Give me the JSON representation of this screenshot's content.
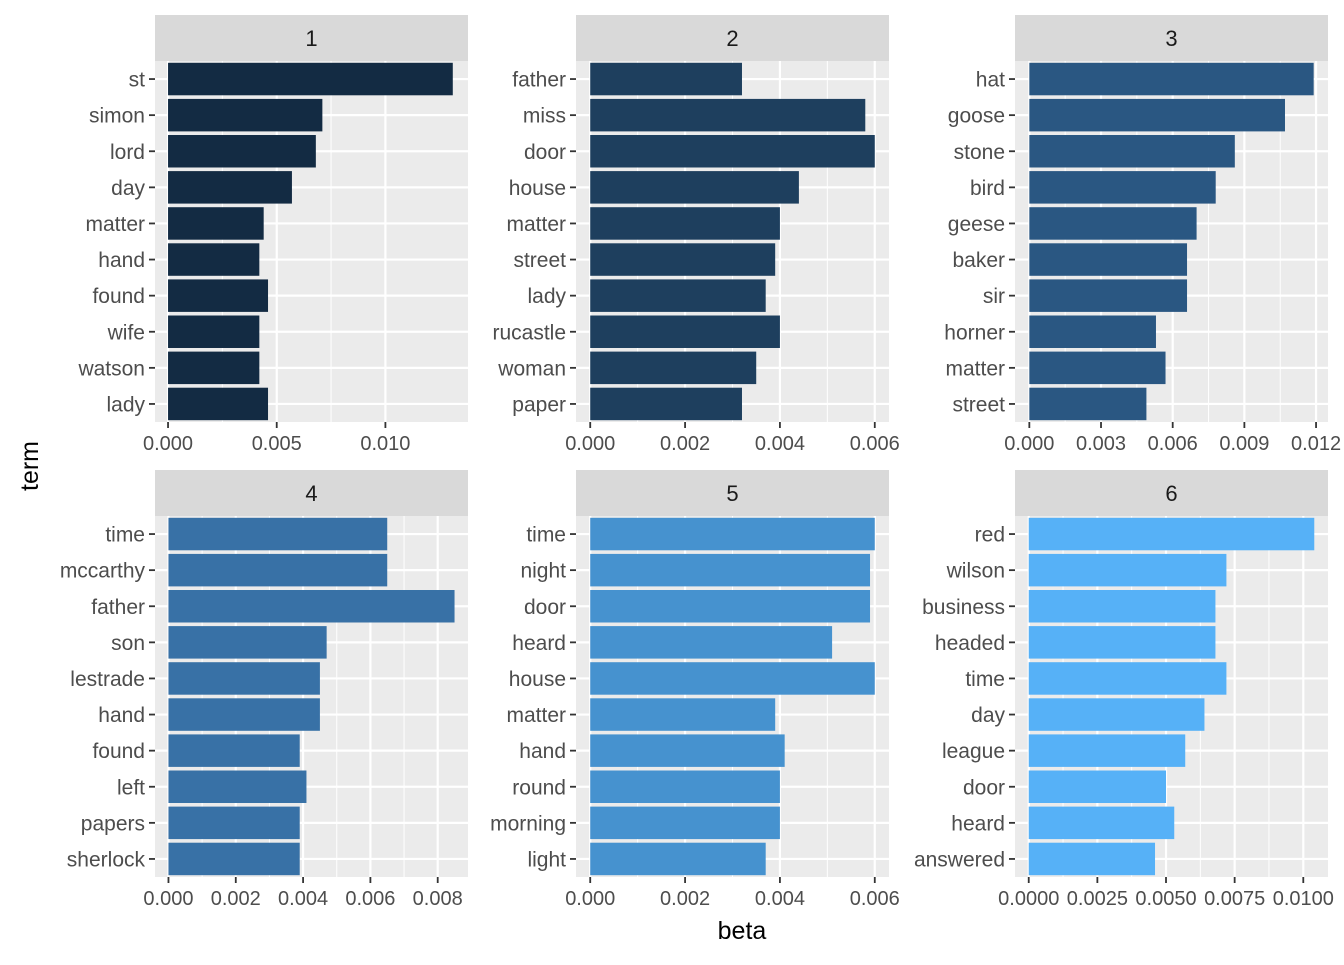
{
  "chart_data": {
    "type": "bar",
    "orientation": "horizontal",
    "xlabel": "beta",
    "ylabel": "term",
    "grid": true,
    "facets": [
      {
        "label": "1",
        "color": "#132B43",
        "terms": [
          "st",
          "simon",
          "lord",
          "day",
          "matter",
          "hand",
          "found",
          "wife",
          "watson",
          "lady"
        ],
        "values": [
          0.0131,
          0.0071,
          0.0068,
          0.0057,
          0.0044,
          0.0042,
          0.0046,
          0.0042,
          0.0042,
          0.0046
        ],
        "xlim": [
          -0.0006,
          0.0138
        ],
        "ticks": [
          0,
          0.005,
          0.01
        ],
        "tick_labels": [
          "0.000",
          "0.005",
          "0.010"
        ]
      },
      {
        "label": "2",
        "color": "#1E3F5E",
        "terms": [
          "father",
          "miss",
          "door",
          "house",
          "matter",
          "street",
          "lady",
          "rucastle",
          "woman",
          "paper"
        ],
        "values": [
          0.0032,
          0.0058,
          0.006,
          0.0044,
          0.004,
          0.0039,
          0.0037,
          0.004,
          0.0035,
          0.0032
        ],
        "xlim": [
          -0.0003,
          0.0063
        ],
        "ticks": [
          0,
          0.002,
          0.004,
          0.006
        ],
        "tick_labels": [
          "0.000",
          "0.002",
          "0.004",
          "0.006"
        ]
      },
      {
        "label": "3",
        "color": "#2A5782",
        "terms": [
          "hat",
          "goose",
          "stone",
          "bird",
          "geese",
          "baker",
          "sir",
          "horner",
          "matter",
          "street"
        ],
        "values": [
          0.0119,
          0.0107,
          0.0086,
          0.0078,
          0.007,
          0.0066,
          0.0066,
          0.0053,
          0.0057,
          0.0049
        ],
        "xlim": [
          -0.0006,
          0.0125
        ],
        "ticks": [
          0,
          0.003,
          0.006,
          0.009,
          0.012
        ],
        "tick_labels": [
          "0.000",
          "0.003",
          "0.006",
          "0.009",
          "0.012"
        ]
      },
      {
        "label": "4",
        "color": "#3871A6",
        "terms": [
          "time",
          "mccarthy",
          "father",
          "son",
          "lestrade",
          "hand",
          "found",
          "left",
          "papers",
          "sherlock"
        ],
        "values": [
          0.0065,
          0.0065,
          0.0085,
          0.0047,
          0.0045,
          0.0045,
          0.0039,
          0.0041,
          0.0039,
          0.0039
        ],
        "xlim": [
          -0.0004,
          0.0089
        ],
        "ticks": [
          0,
          0.002,
          0.004,
          0.006,
          0.008
        ],
        "tick_labels": [
          "0.000",
          "0.002",
          "0.004",
          "0.006",
          "0.008"
        ]
      },
      {
        "label": "5",
        "color": "#4692CF",
        "terms": [
          "time",
          "night",
          "door",
          "heard",
          "house",
          "matter",
          "hand",
          "round",
          "morning",
          "light"
        ],
        "values": [
          0.006,
          0.0059,
          0.0059,
          0.0051,
          0.006,
          0.0039,
          0.0041,
          0.004,
          0.004,
          0.0037
        ],
        "xlim": [
          -0.0003,
          0.0063
        ],
        "ticks": [
          0,
          0.002,
          0.004,
          0.006
        ],
        "tick_labels": [
          "0.000",
          "0.002",
          "0.004",
          "0.006"
        ]
      },
      {
        "label": "6",
        "color": "#56B1F7",
        "terms": [
          "red",
          "wilson",
          "business",
          "headed",
          "time",
          "day",
          "league",
          "door",
          "heard",
          "answered"
        ],
        "values": [
          0.0104,
          0.0072,
          0.0068,
          0.0068,
          0.0072,
          0.0064,
          0.0057,
          0.005,
          0.0053,
          0.0046
        ],
        "xlim": [
          -0.0005,
          0.0109
        ],
        "ticks": [
          0,
          0.0025,
          0.005,
          0.0075,
          0.01
        ],
        "tick_labels": [
          "0.0000",
          "0.0025",
          "0.0050",
          "0.0075",
          "0.0100"
        ]
      }
    ]
  }
}
